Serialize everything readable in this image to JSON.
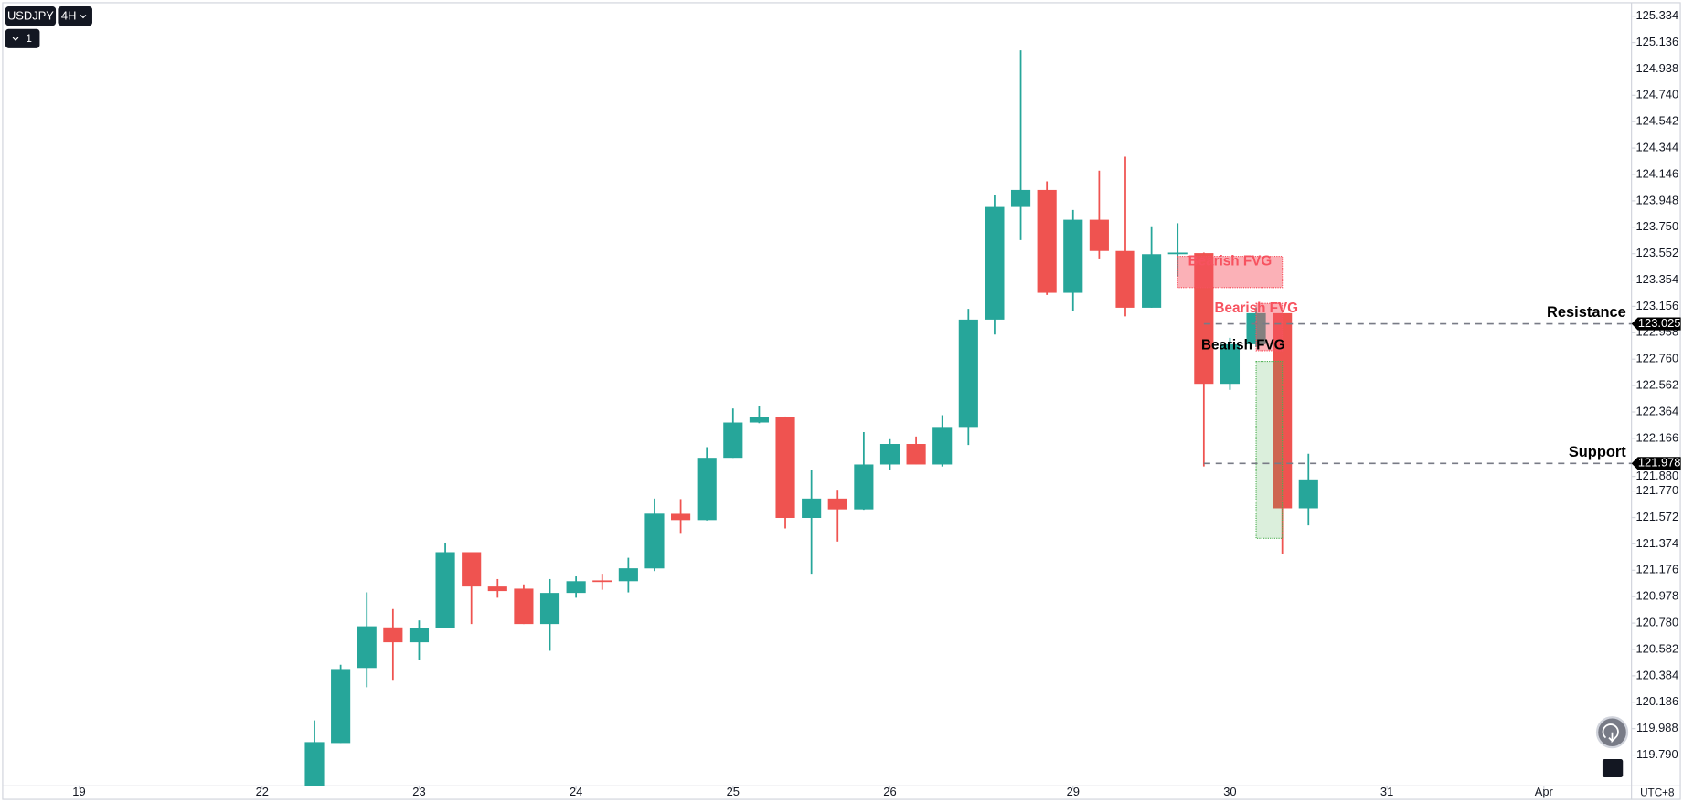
{
  "chart_data": {
    "type": "candlestick",
    "symbol": "USDJPY",
    "interval": "4H",
    "layout_count": "1",
    "timezone": "UTC+8",
    "up_color": "#26a69a",
    "down_color": "#ef5350",
    "x": [
      0,
      1,
      2,
      3,
      4,
      5,
      6,
      7,
      8,
      9,
      10,
      11,
      12,
      13,
      14,
      15,
      16,
      17,
      18,
      19,
      20,
      21,
      22,
      23,
      24,
      25,
      26,
      27,
      28,
      29,
      30,
      31,
      32,
      33,
      34,
      35,
      36,
      37,
      38
    ],
    "open": [
      119.56,
      119.88,
      120.443,
      120.748,
      120.636,
      120.74,
      121.312,
      121.054,
      121.038,
      120.773,
      121.006,
      121.1,
      121.094,
      121.19,
      121.6,
      121.553,
      122.02,
      122.285,
      122.325,
      121.569,
      121.714,
      121.633,
      121.97,
      122.124,
      121.97,
      122.245,
      123.057,
      123.902,
      124.03,
      123.258,
      123.806,
      123.572,
      123.146,
      123.548,
      123.556,
      122.575,
      122.872,
      123.105,
      121.641
    ],
    "high": [
      120.05,
      120.467,
      121.01,
      120.885,
      120.8,
      121.384,
      121.312,
      121.11,
      121.07,
      121.11,
      121.13,
      121.15,
      121.27,
      121.714,
      121.71,
      122.1,
      122.39,
      122.41,
      122.33,
      121.931,
      121.78,
      122.213,
      122.16,
      122.18,
      122.34,
      123.138,
      123.99,
      125.077,
      124.095,
      123.88,
      124.175,
      124.28,
      123.757,
      123.78,
      123.56,
      122.92,
      123.15,
      123.105,
      122.05
    ],
    "low": [
      119.56,
      119.88,
      120.298,
      120.354,
      120.5,
      120.74,
      120.773,
      120.97,
      120.773,
      120.572,
      120.97,
      121.03,
      121.01,
      121.17,
      121.45,
      121.55,
      122.02,
      122.28,
      121.49,
      121.15,
      121.392,
      121.63,
      121.93,
      121.97,
      121.955,
      122.116,
      122.945,
      123.653,
      123.242,
      123.122,
      123.516,
      123.081,
      123.146,
      123.38,
      121.955,
      122.53,
      122.85,
      121.295,
      121.513
    ],
    "close": [
      119.887,
      120.435,
      120.756,
      120.636,
      120.74,
      121.312,
      121.054,
      121.02,
      120.773,
      121.006,
      121.094,
      121.09,
      121.191,
      121.601,
      121.553,
      122.02,
      122.285,
      122.325,
      121.569,
      121.714,
      121.633,
      121.97,
      122.124,
      121.97,
      122.245,
      123.057,
      123.902,
      124.03,
      123.258,
      123.806,
      123.572,
      123.146,
      123.548,
      123.56,
      122.575,
      122.872,
      123.105,
      121.641,
      121.858
    ],
    "xlim": [
      -11.9,
      50.35
    ],
    "xticks": [
      {
        "value": -9,
        "label": "19"
      },
      {
        "value": -2,
        "label": "22"
      },
      {
        "value": 4,
        "label": "23"
      },
      {
        "value": 10,
        "label": "24"
      },
      {
        "value": 16,
        "label": "25"
      },
      {
        "value": 22,
        "label": "26"
      },
      {
        "value": 29,
        "label": "29"
      },
      {
        "value": 35,
        "label": "30"
      },
      {
        "value": 41,
        "label": "31"
      },
      {
        "value": 47,
        "label": "Apr"
      }
    ],
    "ylim": [
      119.558,
      125.431
    ],
    "yticks": [
      125.334,
      125.136,
      124.938,
      {
        "value": 124.74,
        "label": "124.740"
      },
      124.542,
      124.344,
      124.146,
      123.948,
      {
        "value": 123.75,
        "label": "123.750"
      },
      123.552,
      123.354,
      123.156,
      122.958,
      {
        "value": 122.76,
        "label": "122.760"
      },
      122.562,
      122.364,
      122.166,
      {
        "value": 121.88,
        "label": "121.880"
      },
      {
        "value": 121.77,
        "label": "121.770"
      },
      121.572,
      121.374,
      121.176,
      120.978,
      {
        "value": 120.78,
        "label": "120.780"
      },
      120.582,
      120.384,
      120.186,
      119.988,
      {
        "value": 119.79,
        "label": "119.790"
      }
    ],
    "levels": [
      {
        "label": "Resistance",
        "value": 123.025,
        "x0": 34
      },
      {
        "label": "Support",
        "value": 121.978,
        "x0": 34
      }
    ],
    "zones": [
      {
        "label": "Bearish FVG",
        "color": "#f7525f",
        "top": 123.532,
        "bottom": 123.298,
        "x0": 33.0,
        "x1": 37.0
      },
      {
        "label": "Bearish FVG",
        "color": "#f7525f",
        "top": 123.178,
        "bottom": 122.824,
        "x0": 36.0,
        "x1": 37.0
      },
      {
        "color": "#4caf50",
        "top": 122.744,
        "bottom": 121.416,
        "x0": 36.0,
        "x1": 37.0
      }
    ],
    "annotations": [
      {
        "text": "Bearish FVG",
        "x": 35.5,
        "y": 122.86
      }
    ]
  }
}
